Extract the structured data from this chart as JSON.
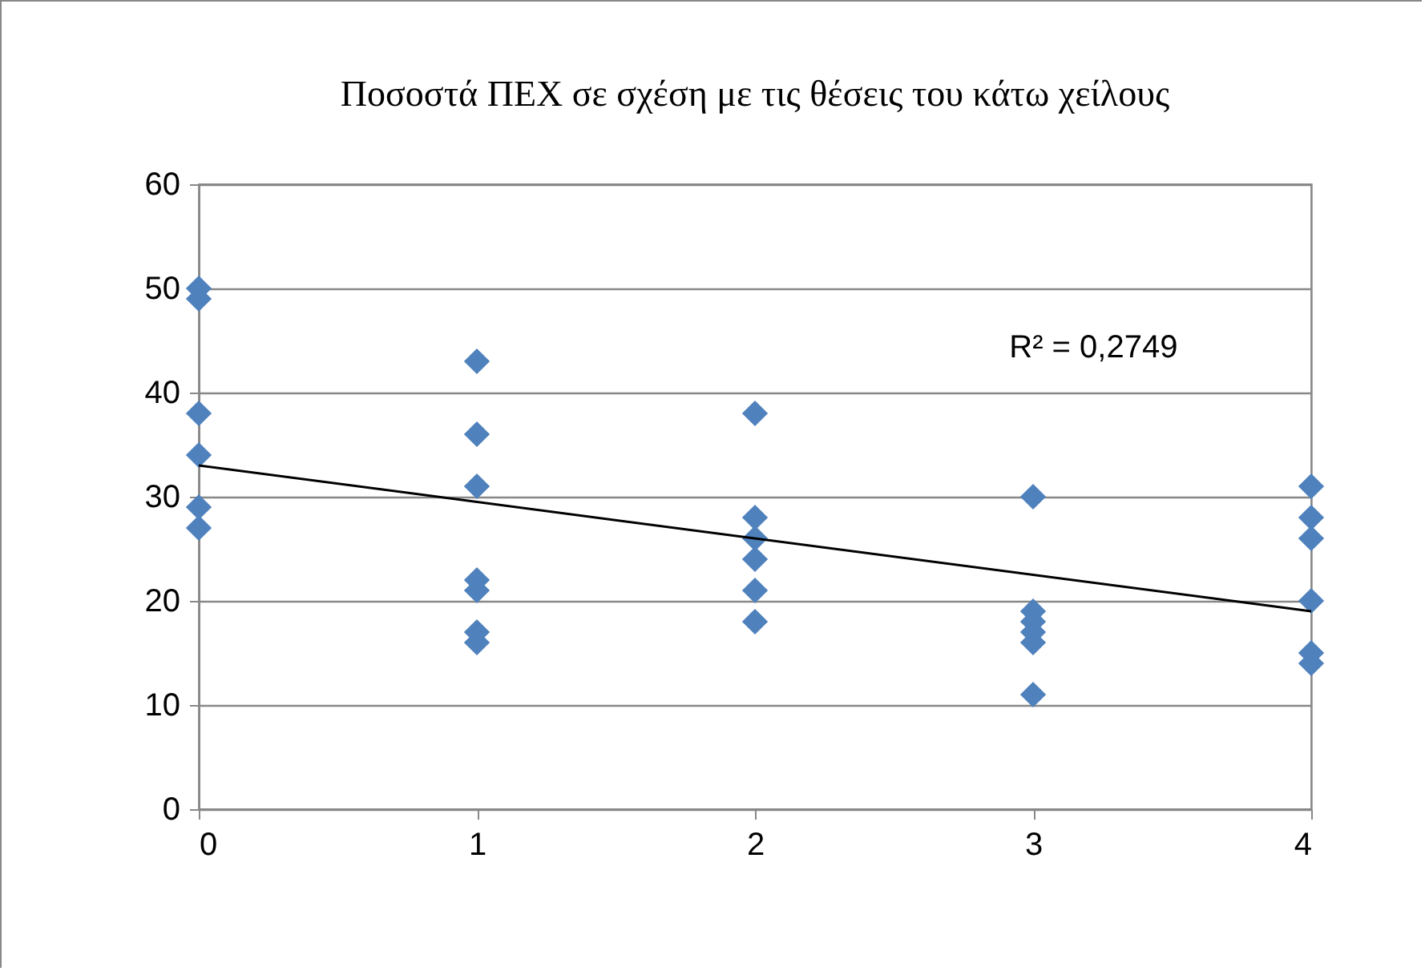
{
  "chart_data": {
    "type": "scatter",
    "title": "Ποσοστά ΠΕΧ  σε σχέση με τις θέσεις του κάτω χείλους",
    "annotations": [
      "R² = 0,2749"
    ],
    "series": [
      {
        "color": "#4f81bd",
        "marker": "diamond",
        "x": [
          0,
          0,
          0,
          0,
          0,
          0,
          1,
          1,
          1,
          1,
          1,
          1,
          1,
          2,
          2,
          2,
          2,
          2,
          2,
          3,
          3,
          3,
          3,
          3,
          3,
          4,
          4,
          4,
          4,
          4,
          4
        ],
        "values": [
          50,
          49,
          38,
          34,
          29,
          27,
          43,
          36,
          31,
          22,
          21,
          17,
          16,
          38,
          28,
          26,
          24,
          21,
          18,
          30,
          19,
          18,
          17,
          16,
          11,
          31,
          28,
          26,
          20,
          15,
          14
        ]
      },
      {
        "type": "line",
        "color": "#000000",
        "x": [
          0,
          4
        ],
        "values": [
          33,
          19
        ]
      }
    ],
    "xlim": [
      0,
      4
    ],
    "xticks": [
      0,
      1,
      2,
      3,
      4
    ],
    "ylim": [
      0,
      60
    ],
    "yticks": [
      0,
      10,
      20,
      30,
      40,
      50,
      60
    ],
    "grid": "y",
    "line_style": "solid"
  }
}
